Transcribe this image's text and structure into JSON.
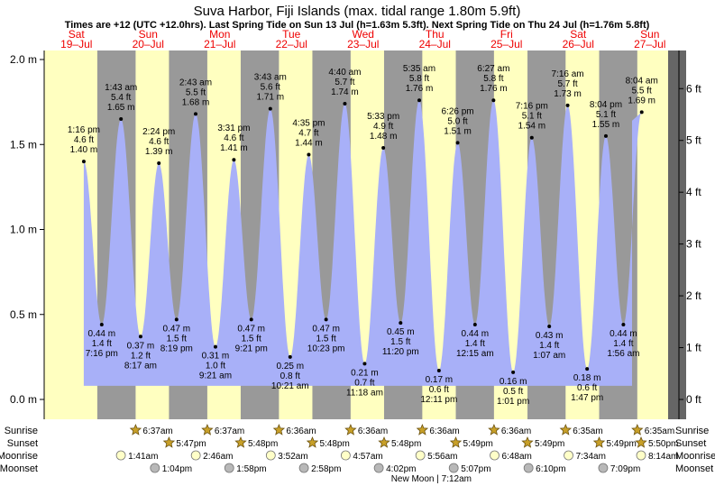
{
  "header": {
    "title": "Suva Harbor, Fiji Islands (max. tidal range 1.80m 5.9ft)",
    "subtitle": "Times are +12 (UTC +12.0hrs). Last Spring Tide on Sun 13 Jul (h=1.63m 5.3ft). Next Spring Tide on Thu 24 Jul (h=1.76m 5.8ft)"
  },
  "colors": {
    "day": "#ffffc0",
    "night": "#999999",
    "water": "#a8b0f8",
    "date_text": "#ee0000",
    "dark_edge": "#666666"
  },
  "chart_data": {
    "type": "area",
    "title": "Suva Harbor, Fiji Islands (max. tidal range 1.80m 5.9ft)",
    "y_left": {
      "unit": "m",
      "ylim": [
        -0.1,
        2.05
      ],
      "ticks": [
        0.0,
        0.5,
        1.0,
        1.5,
        2.0
      ],
      "labels": [
        "0.0 m",
        "0.5 m",
        "1.0 m",
        "1.5 m",
        "2.0 m"
      ]
    },
    "y_right": {
      "unit": "ft",
      "ticks": [
        0,
        1,
        2,
        3,
        4,
        5,
        6
      ],
      "labels": [
        "0 ft",
        "1 ft",
        "2 ft",
        "3 ft",
        "4 ft",
        "5 ft",
        "6 ft"
      ]
    },
    "days": [
      {
        "dow": "Sat",
        "date": "19–Jul",
        "sunrise": "",
        "sunset": "",
        "moonrise": "",
        "moonset": ""
      },
      {
        "dow": "Sun",
        "date": "20–Jul",
        "sunrise": "6:37am",
        "sunset": "5:47pm",
        "moonrise": "1:41am",
        "moonset": "1:04pm"
      },
      {
        "dow": "Mon",
        "date": "21–Jul",
        "sunrise": "6:37am",
        "sunset": "5:48pm",
        "moonrise": "2:46am",
        "moonset": "1:58pm"
      },
      {
        "dow": "Tue",
        "date": "22–Jul",
        "sunrise": "6:36am",
        "sunset": "5:48pm",
        "moonrise": "3:52am",
        "moonset": "2:58pm"
      },
      {
        "dow": "Wed",
        "date": "23–Jul",
        "sunrise": "6:36am",
        "sunset": "5:48pm",
        "moonrise": "4:57am",
        "moonset": "4:02pm"
      },
      {
        "dow": "Thu",
        "date": "24–Jul",
        "sunrise": "6:36am",
        "sunset": "5:49pm",
        "moonrise": "5:56am",
        "moonset": "5:07pm"
      },
      {
        "dow": "Fri",
        "date": "25–Jul",
        "sunrise": "6:36am",
        "sunset": "5:49pm",
        "moonrise": "6:48am",
        "moonset": "6:10pm"
      },
      {
        "dow": "Sat",
        "date": "26–Jul",
        "sunrise": "6:35am",
        "sunset": "5:49pm",
        "moonrise": "7:34am",
        "moonset": "7:09pm"
      },
      {
        "dow": "Sun",
        "date": "27–Jul",
        "sunrise": "6:35am",
        "sunset": "5:50pm",
        "moonrise": "8:14am",
        "moonset": ""
      }
    ],
    "extremes": [
      {
        "type": "high",
        "day": 0,
        "time": "1:16 pm",
        "ft": "4.6 ft",
        "m": 1.4,
        "m_label": "1.40 m"
      },
      {
        "type": "low",
        "day": 0,
        "time": "7:16 pm",
        "ft": "1.4 ft",
        "m": 0.44,
        "m_label": "0.44 m"
      },
      {
        "type": "high",
        "day": 1,
        "time": "1:43 am",
        "ft": "5.4 ft",
        "m": 1.65,
        "m_label": "1.65 m"
      },
      {
        "type": "low",
        "day": 1,
        "time": "8:17 am",
        "ft": "1.2 ft",
        "m": 0.37,
        "m_label": "0.37 m"
      },
      {
        "type": "high",
        "day": 1,
        "time": "2:24 pm",
        "ft": "4.6 ft",
        "m": 1.39,
        "m_label": "1.39 m"
      },
      {
        "type": "low",
        "day": 1,
        "time": "8:19 pm",
        "ft": "1.5 ft",
        "m": 0.47,
        "m_label": "0.47 m"
      },
      {
        "type": "high",
        "day": 2,
        "time": "2:43 am",
        "ft": "5.5 ft",
        "m": 1.68,
        "m_label": "1.68 m"
      },
      {
        "type": "low",
        "day": 2,
        "time": "9:21 am",
        "ft": "1.0 ft",
        "m": 0.31,
        "m_label": "0.31 m"
      },
      {
        "type": "high",
        "day": 2,
        "time": "3:31 pm",
        "ft": "4.6 ft",
        "m": 1.41,
        "m_label": "1.41 m"
      },
      {
        "type": "low",
        "day": 2,
        "time": "9:21 pm",
        "ft": "1.5 ft",
        "m": 0.47,
        "m_label": "0.47 m"
      },
      {
        "type": "high",
        "day": 3,
        "time": "3:43 am",
        "ft": "5.6 ft",
        "m": 1.71,
        "m_label": "1.71 m"
      },
      {
        "type": "low",
        "day": 3,
        "time": "10:21 am",
        "ft": "0.8 ft",
        "m": 0.25,
        "m_label": "0.25 m"
      },
      {
        "type": "high",
        "day": 3,
        "time": "4:35 pm",
        "ft": "4.7 ft",
        "m": 1.44,
        "m_label": "1.44 m"
      },
      {
        "type": "low",
        "day": 3,
        "time": "10:23 pm",
        "ft": "1.5 ft",
        "m": 0.47,
        "m_label": "0.47 m"
      },
      {
        "type": "high",
        "day": 4,
        "time": "4:40 am",
        "ft": "5.7 ft",
        "m": 1.74,
        "m_label": "1.74 m"
      },
      {
        "type": "low",
        "day": 4,
        "time": "11:18 am",
        "ft": "0.7 ft",
        "m": 0.21,
        "m_label": "0.21 m"
      },
      {
        "type": "high",
        "day": 4,
        "time": "5:33 pm",
        "ft": "4.9 ft",
        "m": 1.48,
        "m_label": "1.48 m"
      },
      {
        "type": "low",
        "day": 4,
        "time": "11:20 pm",
        "ft": "1.5 ft",
        "m": 0.45,
        "m_label": "0.45 m"
      },
      {
        "type": "high",
        "day": 5,
        "time": "5:35 am",
        "ft": "5.8 ft",
        "m": 1.76,
        "m_label": "1.76 m"
      },
      {
        "type": "low",
        "day": 5,
        "time": "12:11 pm",
        "ft": "0.6 ft",
        "m": 0.17,
        "m_label": "0.17 m"
      },
      {
        "type": "high",
        "day": 5,
        "time": "6:26 pm",
        "ft": "5.0 ft",
        "m": 1.51,
        "m_label": "1.51 m"
      },
      {
        "type": "low",
        "day": 6,
        "time": "12:15 am",
        "ft": "1.4 ft",
        "m": 0.44,
        "m_label": "0.44 m"
      },
      {
        "type": "high",
        "day": 6,
        "time": "6:27 am",
        "ft": "5.8 ft",
        "m": 1.76,
        "m_label": "1.76 m"
      },
      {
        "type": "low",
        "day": 6,
        "time": "1:01 pm",
        "ft": "0.5 ft",
        "m": 0.16,
        "m_label": "0.16 m"
      },
      {
        "type": "high",
        "day": 6,
        "time": "7:16 pm",
        "ft": "5.1 ft",
        "m": 1.54,
        "m_label": "1.54 m"
      },
      {
        "type": "low",
        "day": 7,
        "time": "1:07 am",
        "ft": "1.4 ft",
        "m": 0.43,
        "m_label": "0.43 m"
      },
      {
        "type": "high",
        "day": 7,
        "time": "7:16 am",
        "ft": "5.7 ft",
        "m": 1.73,
        "m_label": "1.73 m"
      },
      {
        "type": "low",
        "day": 7,
        "time": "1:47 pm",
        "ft": "0.6 ft",
        "m": 0.18,
        "m_label": "0.18 m"
      },
      {
        "type": "high",
        "day": 7,
        "time": "8:04 pm",
        "ft": "5.1 ft",
        "m": 1.55,
        "m_label": "1.55 m"
      },
      {
        "type": "low",
        "day": 8,
        "time": "1:56 am",
        "ft": "1.4 ft",
        "m": 0.44,
        "m_label": "0.44 m"
      },
      {
        "type": "high",
        "day": 8,
        "time": "8:04 am",
        "ft": "5.5 ft",
        "m": 1.69,
        "m_label": "1.69 m"
      }
    ],
    "row_labels": [
      "Sunrise",
      "Sunset",
      "Moonrise",
      "Moonset"
    ],
    "moon_phase": {
      "name": "New Moon",
      "time": "7:12am",
      "day": 5
    },
    "grid": false
  }
}
